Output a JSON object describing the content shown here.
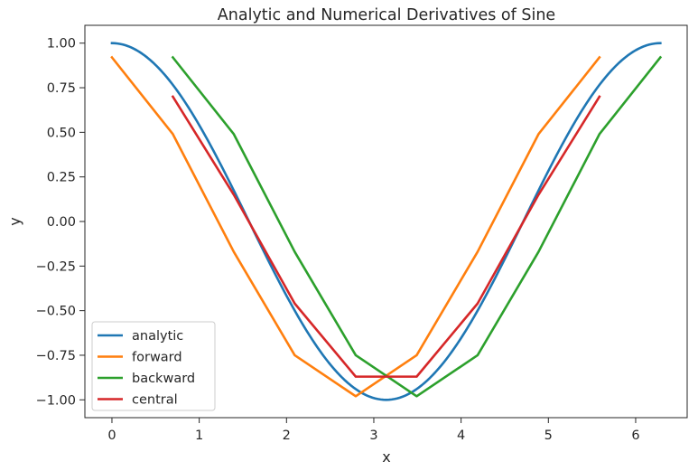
{
  "chart_data": {
    "type": "line",
    "title": "Analytic and Numerical Derivatives of Sine",
    "xlabel": "x",
    "ylabel": "y",
    "xlim": [
      -0.31,
      6.59
    ],
    "ylim": [
      -1.1,
      1.1
    ],
    "xticks": [
      0,
      1,
      2,
      3,
      4,
      5,
      6
    ],
    "yticks": [
      1.0,
      0.75,
      0.5,
      0.25,
      0.0,
      -0.25,
      -0.5,
      -0.75,
      -1.0
    ],
    "xtick_labels": [
      "0",
      "1",
      "2",
      "3",
      "4",
      "5",
      "6"
    ],
    "ytick_labels": [
      "1.00",
      "0.75",
      "0.50",
      "0.25",
      "0.00",
      "−0.25",
      "−0.50",
      "−0.75",
      "−1.00"
    ],
    "grid": false,
    "legend_position": "lower-left",
    "series": [
      {
        "name": "analytic",
        "color": "#1f77b4",
        "function": "cos(x)",
        "x_range": [
          0,
          6.283
        ]
      },
      {
        "name": "forward",
        "color": "#ff7f0e",
        "x": [
          0.0,
          0.698,
          1.396,
          2.094,
          2.793,
          3.491,
          4.189,
          4.887,
          5.585
        ],
        "y": [
          0.92,
          0.49,
          -0.17,
          -0.75,
          -0.98,
          -0.75,
          -0.17,
          0.49,
          0.92
        ]
      },
      {
        "name": "backward",
        "color": "#2ca02c",
        "x": [
          0.698,
          1.396,
          2.094,
          2.793,
          3.491,
          4.189,
          4.887,
          5.585,
          6.283
        ],
        "y": [
          0.92,
          0.49,
          -0.17,
          -0.75,
          -0.98,
          -0.75,
          -0.17,
          0.49,
          0.92
        ]
      },
      {
        "name": "central",
        "color": "#d62728",
        "x": [
          0.698,
          1.396,
          2.094,
          2.793,
          3.491,
          4.189,
          4.887,
          5.585
        ],
        "y": [
          0.7,
          0.15,
          -0.46,
          -0.87,
          -0.87,
          -0.46,
          0.15,
          0.7
        ]
      }
    ]
  }
}
